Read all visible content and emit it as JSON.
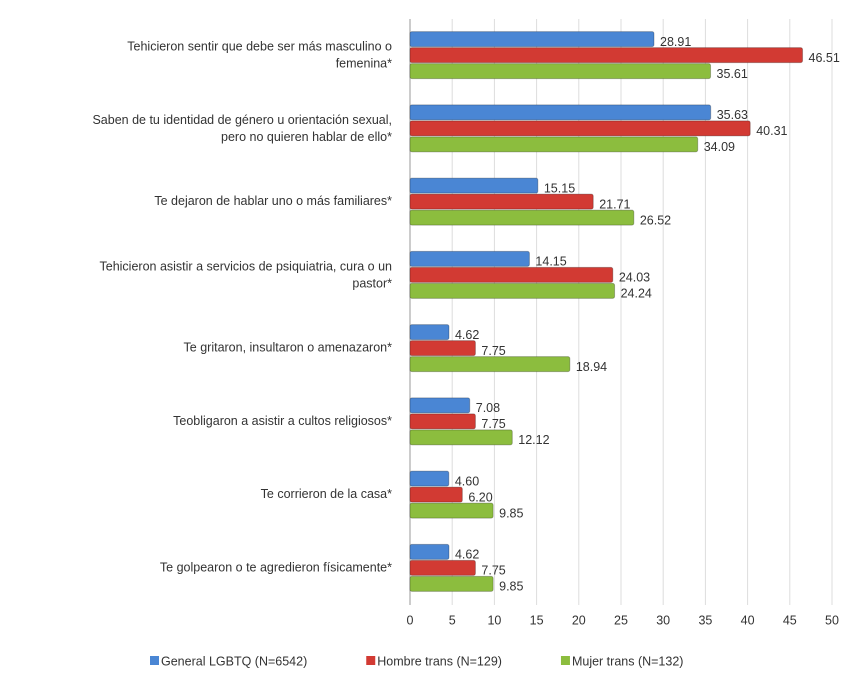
{
  "chart_data": {
    "type": "bar",
    "orientation": "horizontal",
    "categories": [
      [
        "Tehicieron sentir que debe ser más masculino o",
        "femenina*"
      ],
      [
        "Saben de tu identidad de género u orientación sexual,",
        "pero no quieren hablar de ello*"
      ],
      [
        "Te dejaron de hablar uno o más familiares*"
      ],
      [
        "Tehicieron asistir a servicios de psiquiatria, cura o un",
        "pastor*"
      ],
      [
        "Te gritaron, insultaron o amenazaron*"
      ],
      [
        "Teobligaron a asistir a cultos religiosos*"
      ],
      [
        "Te corrieron de la casa*"
      ],
      [
        "Te golpearon o te agredieron físicamente*"
      ]
    ],
    "series": [
      {
        "name": "General LGBTQ (N=6542)",
        "color": "#4a86d4",
        "values": [
          28.91,
          35.63,
          15.15,
          14.15,
          4.62,
          7.08,
          4.6,
          4.62
        ],
        "value_labels": [
          "28.91",
          "35.63",
          "15.15",
          "14.15",
          "4.62",
          "7.08",
          "4.60",
          "4.62"
        ]
      },
      {
        "name": "Hombre trans (N=129)",
        "color": "#d23a33",
        "values": [
          46.51,
          40.31,
          21.71,
          24.03,
          7.75,
          7.75,
          6.2,
          7.75
        ],
        "value_labels": [
          "46.51",
          "40.31",
          "21.71",
          "24.03",
          "7.75",
          "7.75",
          "6.20",
          "7.75"
        ]
      },
      {
        "name": "Mujer trans (N=132)",
        "color": "#8cbd3e",
        "values": [
          35.61,
          34.09,
          26.52,
          24.24,
          18.94,
          12.12,
          9.85,
          9.85
        ],
        "value_labels": [
          "35.61",
          "34.09",
          "26.52",
          "24.24",
          "18.94",
          "12.12",
          "9.85",
          "9.85"
        ]
      }
    ],
    "xlim": [
      0,
      50
    ],
    "xticks": [
      0,
      5,
      10,
      15,
      20,
      25,
      30,
      35,
      40,
      45,
      50
    ],
    "grid": true,
    "legend": "bottom"
  }
}
